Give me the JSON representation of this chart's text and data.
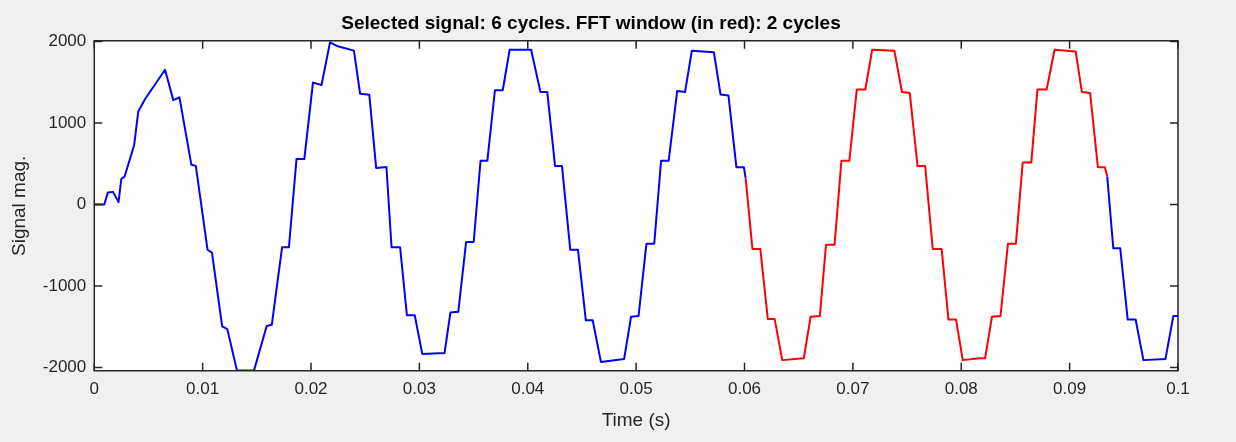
{
  "chart_data": {
    "type": "line",
    "title": "Selected signal: 6 cycles. FFT window (in red): 2 cycles",
    "xlabel": "Time (s)",
    "ylabel": "Signal mag.",
    "xlim": [
      0,
      0.1
    ],
    "xticks": [
      0,
      0.01,
      0.02,
      0.03,
      0.04,
      0.05,
      0.06,
      0.07,
      0.08,
      0.09,
      0.1
    ],
    "ylim": [
      -2040,
      2010
    ],
    "yticks": [
      -2000,
      -1000,
      0,
      1000,
      2000
    ],
    "grid": false,
    "legend": false,
    "marker": "none",
    "line_style": "solid",
    "series": [
      {
        "color": "#0000ff",
        "x": [
          0,
          0.00092,
          0.00125,
          0.00173,
          0.00224,
          0.00249,
          0.0028,
          0.00368,
          0.00406,
          0.00469,
          0.00653,
          0.00729,
          0.00786,
          0.00896,
          0.00937,
          0.01045,
          0.01086,
          0.0118,
          0.01228,
          0.01316,
          0.01474,
          0.01591,
          0.01638,
          0.01733,
          0.01796,
          0.01866,
          0.01938,
          0.02018,
          0.02097,
          0.02175,
          0.02238,
          0.02396,
          0.02453,
          0.02538,
          0.02601,
          0.02696,
          0.02743,
          0.02822,
          0.02885,
          0.02957,
          0.03027,
          0.03232,
          0.03286,
          0.03359,
          0.03431,
          0.03501,
          0.03564,
          0.03627,
          0.03697,
          0.03769,
          0.03833,
          0.04031,
          0.04117,
          0.0418,
          0.04252,
          0.04316,
          0.04392,
          0.04463,
          0.04536,
          0.04599,
          0.04675,
          0.04889,
          0.04953,
          0.05022,
          0.05095,
          0.05167,
          0.0523,
          0.053,
          0.05379,
          0.05451,
          0.05514,
          0.05717,
          0.05779,
          0.05852,
          0.05925,
          0.05994,
          0.0601
        ],
        "values": [
          0,
          0,
          147,
          156,
          30,
          314,
          344,
          731,
          1143,
          1295,
          1655,
          1282,
          1316,
          488,
          475,
          -554,
          -589,
          -1494,
          -1529,
          -2035,
          -2035,
          -1489,
          -1476,
          -524,
          -524,
          558,
          558,
          1497,
          1467,
          1990,
          1947,
          1889,
          1360,
          1347,
          450,
          460,
          -524,
          -524,
          -1359,
          -1359,
          -1835,
          -1822,
          -1325,
          -1316,
          -459,
          -459,
          537,
          537,
          1403,
          1403,
          1900,
          1900,
          1381,
          1381,
          472,
          472,
          -554,
          -554,
          -1420,
          -1420,
          -1931,
          -1896,
          -1377,
          -1368,
          -481,
          -481,
          537,
          537,
          1394,
          1381,
          1887,
          1870,
          1351,
          1338,
          459,
          459,
          329
        ]
      },
      {
        "color": "#ff0000",
        "x": [
          0.0601,
          0.06073,
          0.06146,
          0.06215,
          0.06278,
          0.06348,
          0.06547,
          0.0661,
          0.06695,
          0.06752,
          0.06831,
          0.06894,
          0.06967,
          0.07036,
          0.07115,
          0.07178,
          0.07383,
          0.07453,
          0.07525,
          0.07597,
          0.07667,
          0.07737,
          0.07819,
          0.07882,
          0.07952,
          0.08014,
          0.08172,
          0.0822,
          0.08283,
          0.08362,
          0.08431,
          0.08504,
          0.08567,
          0.08646,
          0.08703,
          0.08788,
          0.08861,
          0.09056,
          0.09113,
          0.09189,
          0.09261,
          0.09325,
          0.09347
        ],
        "values": [
          329,
          -545,
          -545,
          -1403,
          -1403,
          -1909,
          -1887,
          -1377,
          -1368,
          -494,
          -494,
          537,
          537,
          1412,
          1412,
          1900,
          1887,
          1381,
          1368,
          472,
          472,
          -545,
          -545,
          -1411,
          -1411,
          -1909,
          -1887,
          -1887,
          -1377,
          -1368,
          -481,
          -481,
          515,
          515,
          1412,
          1412,
          1900,
          1879,
          1381,
          1368,
          459,
          459,
          344
        ]
      },
      {
        "color": "#0000ff",
        "x": [
          0.09347,
          0.09403,
          0.09467,
          0.09536,
          0.09609,
          0.09681,
          0.09884,
          0.09957,
          0.1
        ],
        "values": [
          344,
          -537,
          -537,
          -1411,
          -1411,
          -1909,
          -1896,
          -1368,
          -1368
        ]
      }
    ]
  }
}
